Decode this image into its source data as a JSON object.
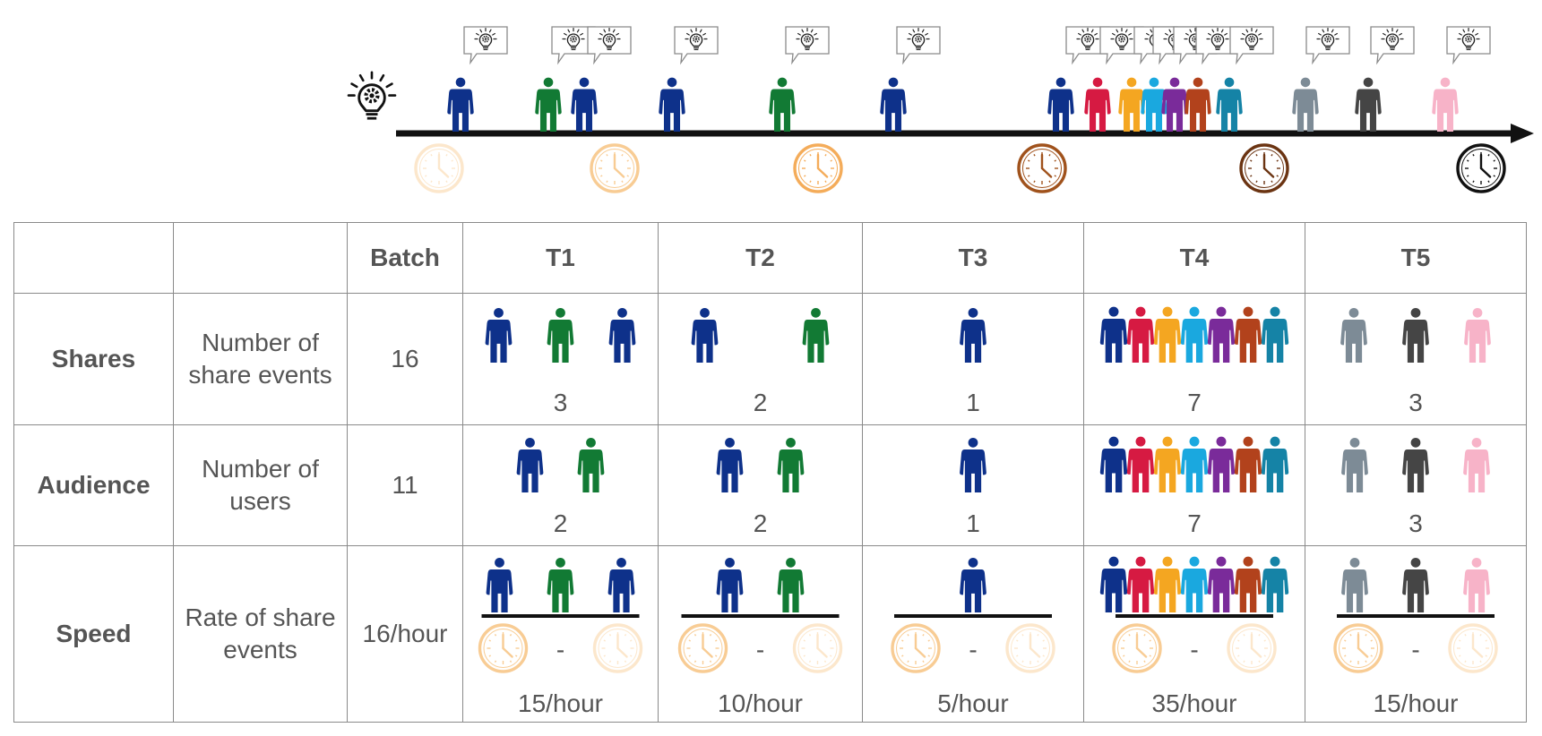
{
  "colors": {
    "navy": "#0e318a",
    "green": "#127a34",
    "red": "#d61a42",
    "orange": "#f4a621",
    "skyblue": "#1aa8df",
    "purple": "#7a2b9a",
    "rust": "#b2421c",
    "teal": "#1583a6",
    "gray": "#7d8b96",
    "darkgray": "#454545",
    "pink": "#f7b3c8"
  },
  "timeline": {
    "start_icon": "lightbulb-gear-icon",
    "idea_icon": "speech-bubble-lightbulb-icon",
    "share_events": [
      "navy",
      "green",
      "navy",
      "navy",
      "green",
      "navy",
      "navy",
      "red",
      "orange",
      "skyblue",
      "purple",
      "rust",
      "teal",
      "gray",
      "darkgray",
      "pink"
    ],
    "clocks": [
      {
        "color": "#fce7cc"
      },
      {
        "color": "#f8cc94"
      },
      {
        "color": "#f4ac5a"
      },
      {
        "color": "#a0521c"
      },
      {
        "color": "#6b3412"
      },
      {
        "color": "#111111"
      }
    ]
  },
  "table": {
    "columns": [
      "",
      "",
      "Batch",
      "T1",
      "T2",
      "T3",
      "T4",
      "T5"
    ],
    "rows": [
      {
        "key": "shares",
        "name": "Shares",
        "description": "Number of share events",
        "batch": "16",
        "cells": [
          {
            "label": "3",
            "people": [
              "navy",
              "green",
              "navy"
            ]
          },
          {
            "label": "2",
            "people": [
              "navy",
              "green"
            ]
          },
          {
            "label": "1",
            "people": [
              "navy"
            ]
          },
          {
            "label": "7",
            "people": [
              "navy",
              "red",
              "orange",
              "skyblue",
              "purple",
              "rust",
              "teal"
            ]
          },
          {
            "label": "3",
            "people": [
              "gray",
              "darkgray",
              "pink"
            ]
          }
        ]
      },
      {
        "key": "audience",
        "name": "Audience",
        "description": "Number of users",
        "batch": "11",
        "cells": [
          {
            "label": "2",
            "people": [
              "navy",
              "green"
            ]
          },
          {
            "label": "2",
            "people": [
              "navy",
              "green"
            ]
          },
          {
            "label": "1",
            "people": [
              "navy"
            ]
          },
          {
            "label": "7",
            "people": [
              "navy",
              "red",
              "orange",
              "skyblue",
              "purple",
              "rust",
              "teal"
            ]
          },
          {
            "label": "3",
            "people": [
              "gray",
              "darkgray",
              "pink"
            ]
          }
        ]
      },
      {
        "key": "speed",
        "name": "Speed",
        "description": "Rate of share events",
        "batch": "16/hour",
        "cells": [
          {
            "label": "15/hour",
            "people": [
              "navy",
              "green",
              "navy"
            ]
          },
          {
            "label": "10/hour",
            "people": [
              "navy",
              "green"
            ]
          },
          {
            "label": "5/hour",
            "people": [
              "navy"
            ]
          },
          {
            "label": "35/hour",
            "people": [
              "navy",
              "red",
              "orange",
              "skyblue",
              "purple",
              "rust",
              "teal"
            ]
          },
          {
            "label": "15/hour",
            "people": [
              "gray",
              "darkgray",
              "pink"
            ]
          }
        ],
        "separator": "-",
        "clock_colors": [
          "#f8cc94",
          "#fce7cc"
        ]
      }
    ]
  }
}
